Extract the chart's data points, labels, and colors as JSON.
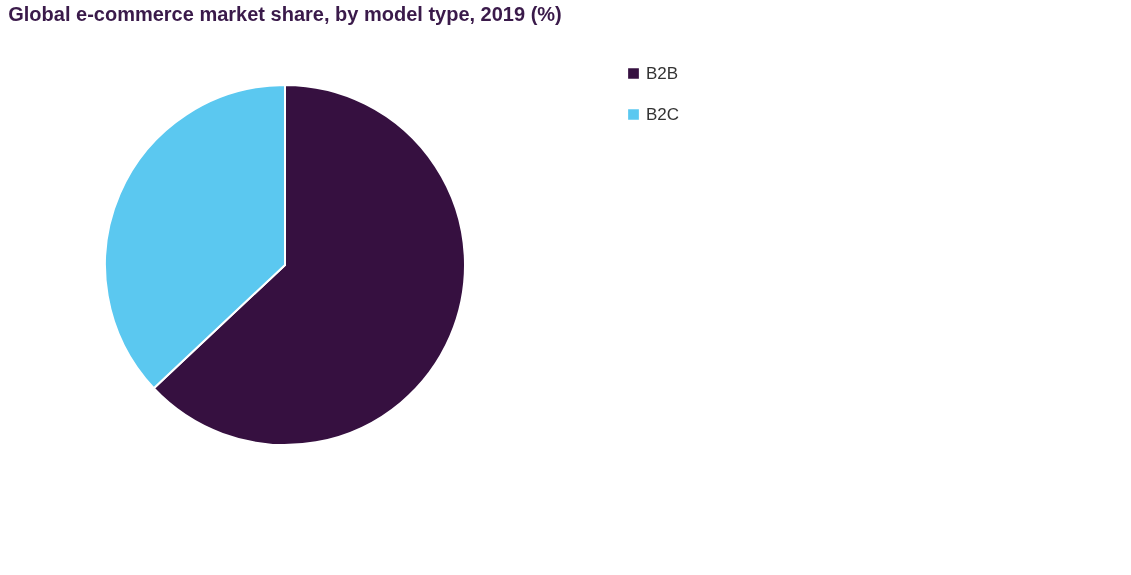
{
  "chart_data": {
    "type": "pie",
    "title": "Global e-commerce market share, by model type, 2019 (%)",
    "categories": [
      "B2B",
      "B2C"
    ],
    "values": [
      63,
      37
    ],
    "colors": [
      "#361040",
      "#5bc8f0"
    ],
    "legend": "right"
  }
}
